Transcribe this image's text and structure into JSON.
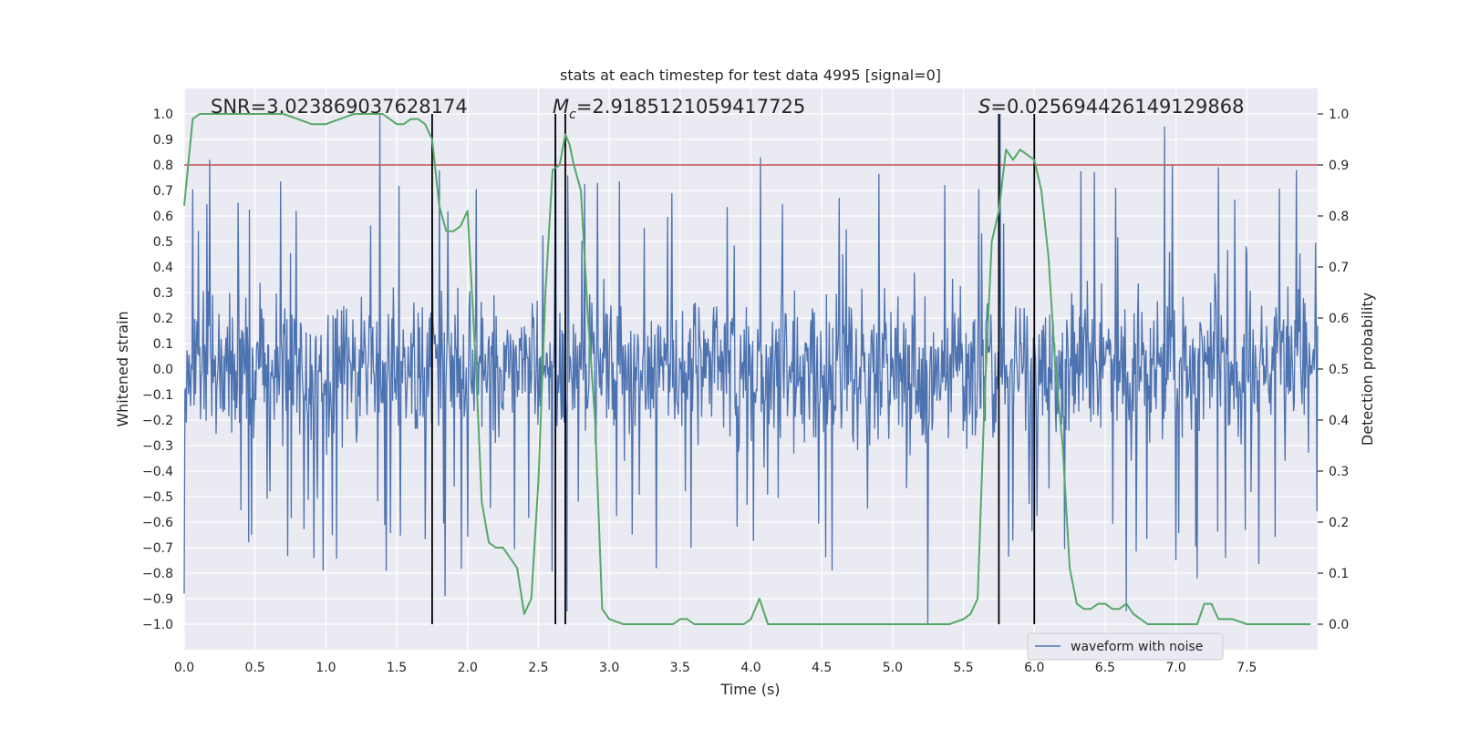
{
  "chart_data": {
    "type": "line",
    "title": "stats at each timestep for test data 4995 [signal=0]",
    "xlabel": "Time (s)",
    "ylabel_left": "Whitened strain",
    "ylabel_right": "Detection probability",
    "xlim": [
      0.0,
      8.0
    ],
    "ylim_left": [
      -1.1,
      1.1
    ],
    "ylim_right": [
      -0.05,
      1.05
    ],
    "x_ticks": [
      "0.0",
      "0.5",
      "1.0",
      "1.5",
      "2.0",
      "2.5",
      "3.0",
      "3.5",
      "4.0",
      "4.5",
      "5.0",
      "5.5",
      "6.0",
      "6.5",
      "7.0",
      "7.5"
    ],
    "x_tick_values": [
      0.0,
      0.5,
      1.0,
      1.5,
      2.0,
      2.5,
      3.0,
      3.5,
      4.0,
      4.5,
      5.0,
      5.5,
      6.0,
      6.5,
      7.0,
      7.5
    ],
    "y_left_ticks": [
      "1.0",
      "0.9",
      "0.8",
      "0.7",
      "0.6",
      "0.5",
      "0.4",
      "0.3",
      "0.2",
      "0.1",
      "0.0",
      "−0.1",
      "−0.2",
      "−0.3",
      "−0.4",
      "−0.5",
      "−0.6",
      "−0.7",
      "−0.8",
      "−0.9",
      "−1.0"
    ],
    "y_left_tick_values": [
      1.0,
      0.9,
      0.8,
      0.7,
      0.6,
      0.5,
      0.4,
      0.3,
      0.2,
      0.1,
      0.0,
      -0.1,
      -0.2,
      -0.3,
      -0.4,
      -0.5,
      -0.6,
      -0.7,
      -0.8,
      -0.9,
      -1.0
    ],
    "y_right_ticks": [
      "1.0",
      "0.9",
      "0.8",
      "0.7",
      "0.6",
      "0.5",
      "0.4",
      "0.3",
      "0.2",
      "0.1",
      "0.0"
    ],
    "y_right_tick_values": [
      1.0,
      0.9,
      0.8,
      0.7,
      0.6,
      0.5,
      0.4,
      0.3,
      0.2,
      0.1,
      0.0
    ],
    "annotations": {
      "snr": "SNR=3.023869037628174",
      "mc_symbol": "M",
      "mc_sub": "c",
      "mc_value": "=2.9185121059417725",
      "s_symbol": "S",
      "s_value": "=0.025694426149129868"
    },
    "threshold": {
      "value": 0.9,
      "axis": "right",
      "color": "#c44e52"
    },
    "vertical_lines": [
      1.75,
      2.62,
      2.69,
      5.75,
      6.0
    ],
    "waveform": {
      "name": "waveform with noise",
      "color": "#4c72b0",
      "seed": 4995,
      "samples": 1600,
      "spikes": [
        {
          "t": 0.0,
          "v": -0.88
        },
        {
          "t": 0.18,
          "v": 0.82
        },
        {
          "t": 0.98,
          "v": -0.79
        },
        {
          "t": 1.38,
          "v": 1.0
        },
        {
          "t": 1.84,
          "v": -0.89
        },
        {
          "t": 2.62,
          "v": 1.0
        },
        {
          "t": 2.7,
          "v": -0.95
        },
        {
          "t": 4.07,
          "v": 0.83
        },
        {
          "t": 5.25,
          "v": -1.0
        },
        {
          "t": 5.76,
          "v": 1.0
        },
        {
          "t": 6.65,
          "v": -0.95
        },
        {
          "t": 6.92,
          "v": 0.95
        },
        {
          "t": 7.15,
          "v": -0.82
        },
        {
          "t": 7.85,
          "v": 0.78
        }
      ]
    },
    "detection_probability": {
      "name": "detection probability",
      "color": "#55a868",
      "x": [
        0.0,
        0.06,
        0.11,
        0.2,
        0.4,
        0.55,
        0.7,
        0.8,
        0.9,
        0.95,
        1.0,
        1.1,
        1.2,
        1.3,
        1.35,
        1.4,
        1.45,
        1.5,
        1.55,
        1.6,
        1.65,
        1.7,
        1.75,
        1.8,
        1.85,
        1.9,
        1.95,
        2.0,
        2.06,
        2.1,
        2.15,
        2.2,
        2.25,
        2.3,
        2.35,
        2.4,
        2.45,
        2.5,
        2.55,
        2.6,
        2.65,
        2.69,
        2.72,
        2.75,
        2.8,
        2.85,
        2.9,
        2.95,
        3.0,
        3.1,
        3.3,
        3.45,
        3.5,
        3.55,
        3.6,
        3.7,
        3.8,
        3.9,
        3.95,
        4.0,
        4.06,
        4.12,
        4.2,
        4.3,
        4.5,
        4.7,
        4.8,
        4.9,
        5.0,
        5.1,
        5.2,
        5.3,
        5.4,
        5.5,
        5.55,
        5.6,
        5.65,
        5.7,
        5.75,
        5.8,
        5.85,
        5.9,
        5.95,
        6.0,
        6.05,
        6.1,
        6.15,
        6.2,
        6.25,
        6.3,
        6.35,
        6.4,
        6.45,
        6.5,
        6.55,
        6.6,
        6.65,
        6.7,
        6.75,
        6.8,
        6.9,
        7.0,
        7.1,
        7.15,
        7.2,
        7.25,
        7.3,
        7.35,
        7.4,
        7.5,
        7.7,
        7.95
      ],
      "y": [
        0.82,
        0.99,
        1.0,
        1.0,
        1.0,
        1.0,
        1.0,
        0.99,
        0.98,
        0.98,
        0.98,
        0.99,
        1.0,
        1.0,
        1.0,
        1.0,
        0.99,
        0.98,
        0.98,
        0.99,
        0.99,
        0.98,
        0.95,
        0.82,
        0.77,
        0.77,
        0.78,
        0.81,
        0.5,
        0.24,
        0.16,
        0.15,
        0.15,
        0.13,
        0.11,
        0.02,
        0.05,
        0.28,
        0.65,
        0.89,
        0.9,
        0.96,
        0.94,
        0.9,
        0.85,
        0.6,
        0.4,
        0.03,
        0.01,
        0.0,
        0.0,
        0.0,
        0.01,
        0.01,
        0.0,
        0.0,
        0.0,
        0.0,
        0.0,
        0.01,
        0.05,
        0.0,
        0.0,
        0.0,
        0.0,
        0.0,
        0.0,
        0.0,
        0.0,
        0.0,
        0.0,
        0.0,
        0.0,
        0.01,
        0.02,
        0.05,
        0.45,
        0.75,
        0.81,
        0.93,
        0.91,
        0.93,
        0.92,
        0.91,
        0.85,
        0.72,
        0.5,
        0.35,
        0.11,
        0.04,
        0.03,
        0.03,
        0.04,
        0.04,
        0.03,
        0.03,
        0.04,
        0.02,
        0.01,
        0.0,
        0.0,
        0.0,
        0.0,
        0.0,
        0.04,
        0.04,
        0.01,
        0.01,
        0.01,
        0.0,
        0.0,
        0.0
      ]
    },
    "legend": {
      "location": "lower right",
      "entries": [
        "waveform with noise"
      ]
    }
  }
}
